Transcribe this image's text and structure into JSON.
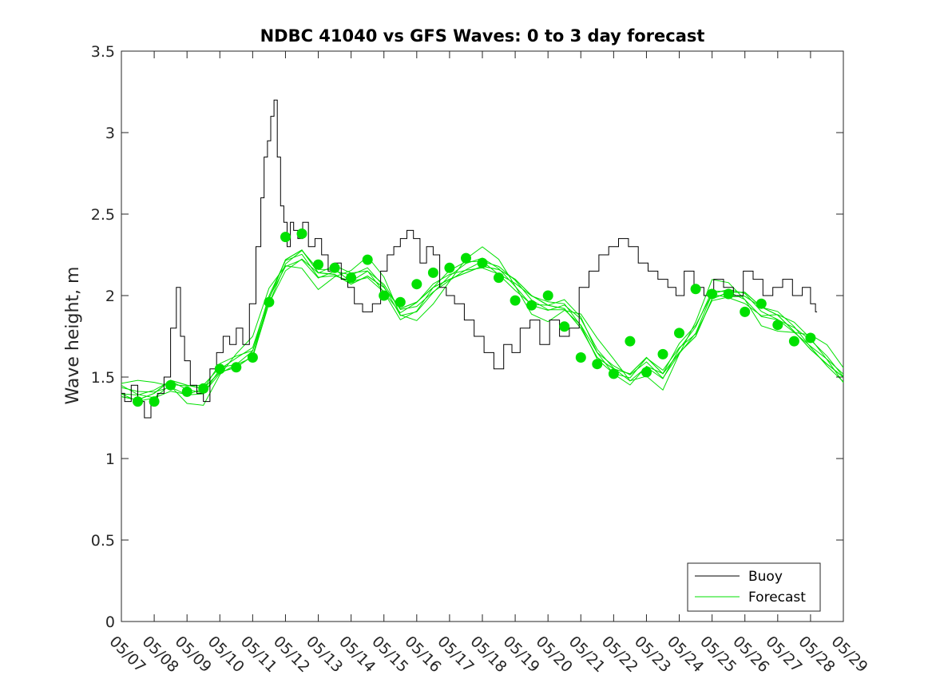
{
  "chart_data": {
    "type": "line",
    "title": "NDBC 41040 vs GFS Waves: 0 to 3 day forecast",
    "xlabel": "",
    "ylabel": "Wave height, m",
    "xlim": [
      0,
      22
    ],
    "ylim": [
      0,
      3.5
    ],
    "yticks": [
      0,
      0.5,
      1,
      1.5,
      2,
      2.5,
      3,
      3.5
    ],
    "ytick_labels": [
      "0",
      "0.5",
      "1",
      "1.5",
      "2",
      "2.5",
      "3",
      "3.5"
    ],
    "xtick_labels": [
      "05/07",
      "05/08",
      "05/09",
      "05/10",
      "05/11",
      "05/12",
      "05/13",
      "05/14",
      "05/15",
      "05/16",
      "05/17",
      "05/18",
      "05/19",
      "05/20",
      "05/21",
      "05/22",
      "05/23",
      "05/24",
      "05/25",
      "05/26",
      "05/27",
      "05/28",
      "05/29"
    ],
    "legend": {
      "position": "bottom-right",
      "entries": [
        "Buoy",
        "Forecast"
      ]
    },
    "colors": {
      "buoy": "#000000",
      "forecast": "#00e000",
      "axis": "#262626"
    },
    "series": [
      {
        "name": "Buoy",
        "x": [
          0,
          0.2,
          0.4,
          0.6,
          0.8,
          1.0,
          1.2,
          1.4,
          1.6,
          1.75,
          1.85,
          2.0,
          2.2,
          2.4,
          2.6,
          2.8,
          3.0,
          3.2,
          3.4,
          3.6,
          3.8,
          4.0,
          4.2,
          4.3,
          4.4,
          4.5,
          4.6,
          4.7,
          4.8,
          4.9,
          5.0,
          5.1,
          5.2,
          5.3,
          5.45,
          5.6,
          5.8,
          6.0,
          6.2,
          6.4,
          6.6,
          6.8,
          7.0,
          7.2,
          7.5,
          7.8,
          8.0,
          8.2,
          8.4,
          8.6,
          8.8,
          9.0,
          9.2,
          9.4,
          9.6,
          9.8,
          10.0,
          10.3,
          10.6,
          10.9,
          11.2,
          11.5,
          11.8,
          12.0,
          12.3,
          12.6,
          12.9,
          13.2,
          13.5,
          13.8,
          14.1,
          14.4,
          14.7,
          15.0,
          15.3,
          15.6,
          15.9,
          16.2,
          16.5,
          16.8,
          17.0,
          17.3,
          17.6,
          17.9,
          18.2,
          18.5,
          18.8,
          19.1,
          19.4,
          19.7,
          20.0,
          20.3,
          20.6,
          20.9,
          21.1,
          21.2
        ],
        "values": [
          1.4,
          1.35,
          1.45,
          1.35,
          1.25,
          1.35,
          1.4,
          1.5,
          1.8,
          2.05,
          1.75,
          1.6,
          1.45,
          1.4,
          1.35,
          1.55,
          1.65,
          1.75,
          1.7,
          1.8,
          1.7,
          1.95,
          2.3,
          2.6,
          2.85,
          2.95,
          3.1,
          3.2,
          2.85,
          2.55,
          2.45,
          2.3,
          2.45,
          2.4,
          2.35,
          2.45,
          2.3,
          2.35,
          2.25,
          2.15,
          2.2,
          2.1,
          2.05,
          1.95,
          1.9,
          1.95,
          2.15,
          2.25,
          2.3,
          2.35,
          2.4,
          2.35,
          2.2,
          2.3,
          2.25,
          2.05,
          2.0,
          1.95,
          1.85,
          1.75,
          1.65,
          1.55,
          1.7,
          1.65,
          1.8,
          1.85,
          1.7,
          1.85,
          1.75,
          1.8,
          2.05,
          2.15,
          2.25,
          2.3,
          2.35,
          2.3,
          2.2,
          2.15,
          2.1,
          2.05,
          2.0,
          2.15,
          2.05,
          2.0,
          2.1,
          2.05,
          2.0,
          2.15,
          2.1,
          2.0,
          2.05,
          2.1,
          2.0,
          2.05,
          1.95,
          1.9
        ]
      },
      {
        "name": "Forecast",
        "x": [
          0,
          0.5,
          1,
          1.5,
          2,
          2.5,
          3,
          3.5,
          4,
          4.5,
          5,
          5.5,
          6,
          6.5,
          7,
          7.5,
          8,
          8.5,
          9,
          9.5,
          10,
          10.5,
          11,
          11.5,
          12,
          12.5,
          13,
          13.5,
          14,
          14.5,
          15,
          15.5,
          16,
          16.5,
          17,
          17.5,
          18,
          18.5,
          19,
          19.5,
          20,
          20.5,
          21,
          21.5,
          22
        ],
        "values": [
          1.38,
          1.36,
          1.4,
          1.48,
          1.45,
          1.43,
          1.53,
          1.56,
          1.63,
          1.98,
          2.22,
          2.28,
          2.14,
          2.13,
          2.07,
          2.12,
          2.05,
          1.92,
          1.96,
          2.05,
          2.1,
          2.14,
          2.18,
          2.16,
          2.1,
          2.0,
          1.94,
          1.92,
          1.8,
          1.62,
          1.55,
          1.52,
          1.62,
          1.52,
          1.65,
          1.75,
          1.98,
          2.02,
          2.02,
          1.93,
          1.88,
          1.78,
          1.67,
          1.58,
          1.5
        ]
      }
    ],
    "forecast_markers": {
      "x": [
        0.5,
        1,
        1.5,
        2,
        2.5,
        3,
        3.5,
        4,
        4.5,
        5,
        5.5,
        6,
        6.5,
        7,
        7.5,
        8,
        8.5,
        9,
        9.5,
        10,
        10.5,
        11,
        11.5,
        12,
        12.5,
        13,
        13.5,
        14,
        14.5,
        15,
        15.5,
        16,
        16.5,
        17,
        17.5,
        18,
        18.5,
        19,
        19.5,
        20,
        20.5,
        21
      ],
      "values": [
        1.35,
        1.35,
        1.45,
        1.41,
        1.43,
        1.55,
        1.56,
        1.62,
        1.96,
        2.36,
        2.38,
        2.19,
        2.17,
        2.11,
        2.22,
        2.0,
        1.96,
        2.07,
        2.14,
        2.17,
        2.23,
        2.2,
        2.11,
        1.97,
        1.94,
        2.0,
        1.81,
        1.62,
        1.58,
        1.52,
        1.72,
        1.53,
        1.64,
        1.77,
        2.04,
        2.01,
        2.01,
        1.9,
        1.95,
        1.82,
        1.72,
        1.74
      ]
    }
  }
}
